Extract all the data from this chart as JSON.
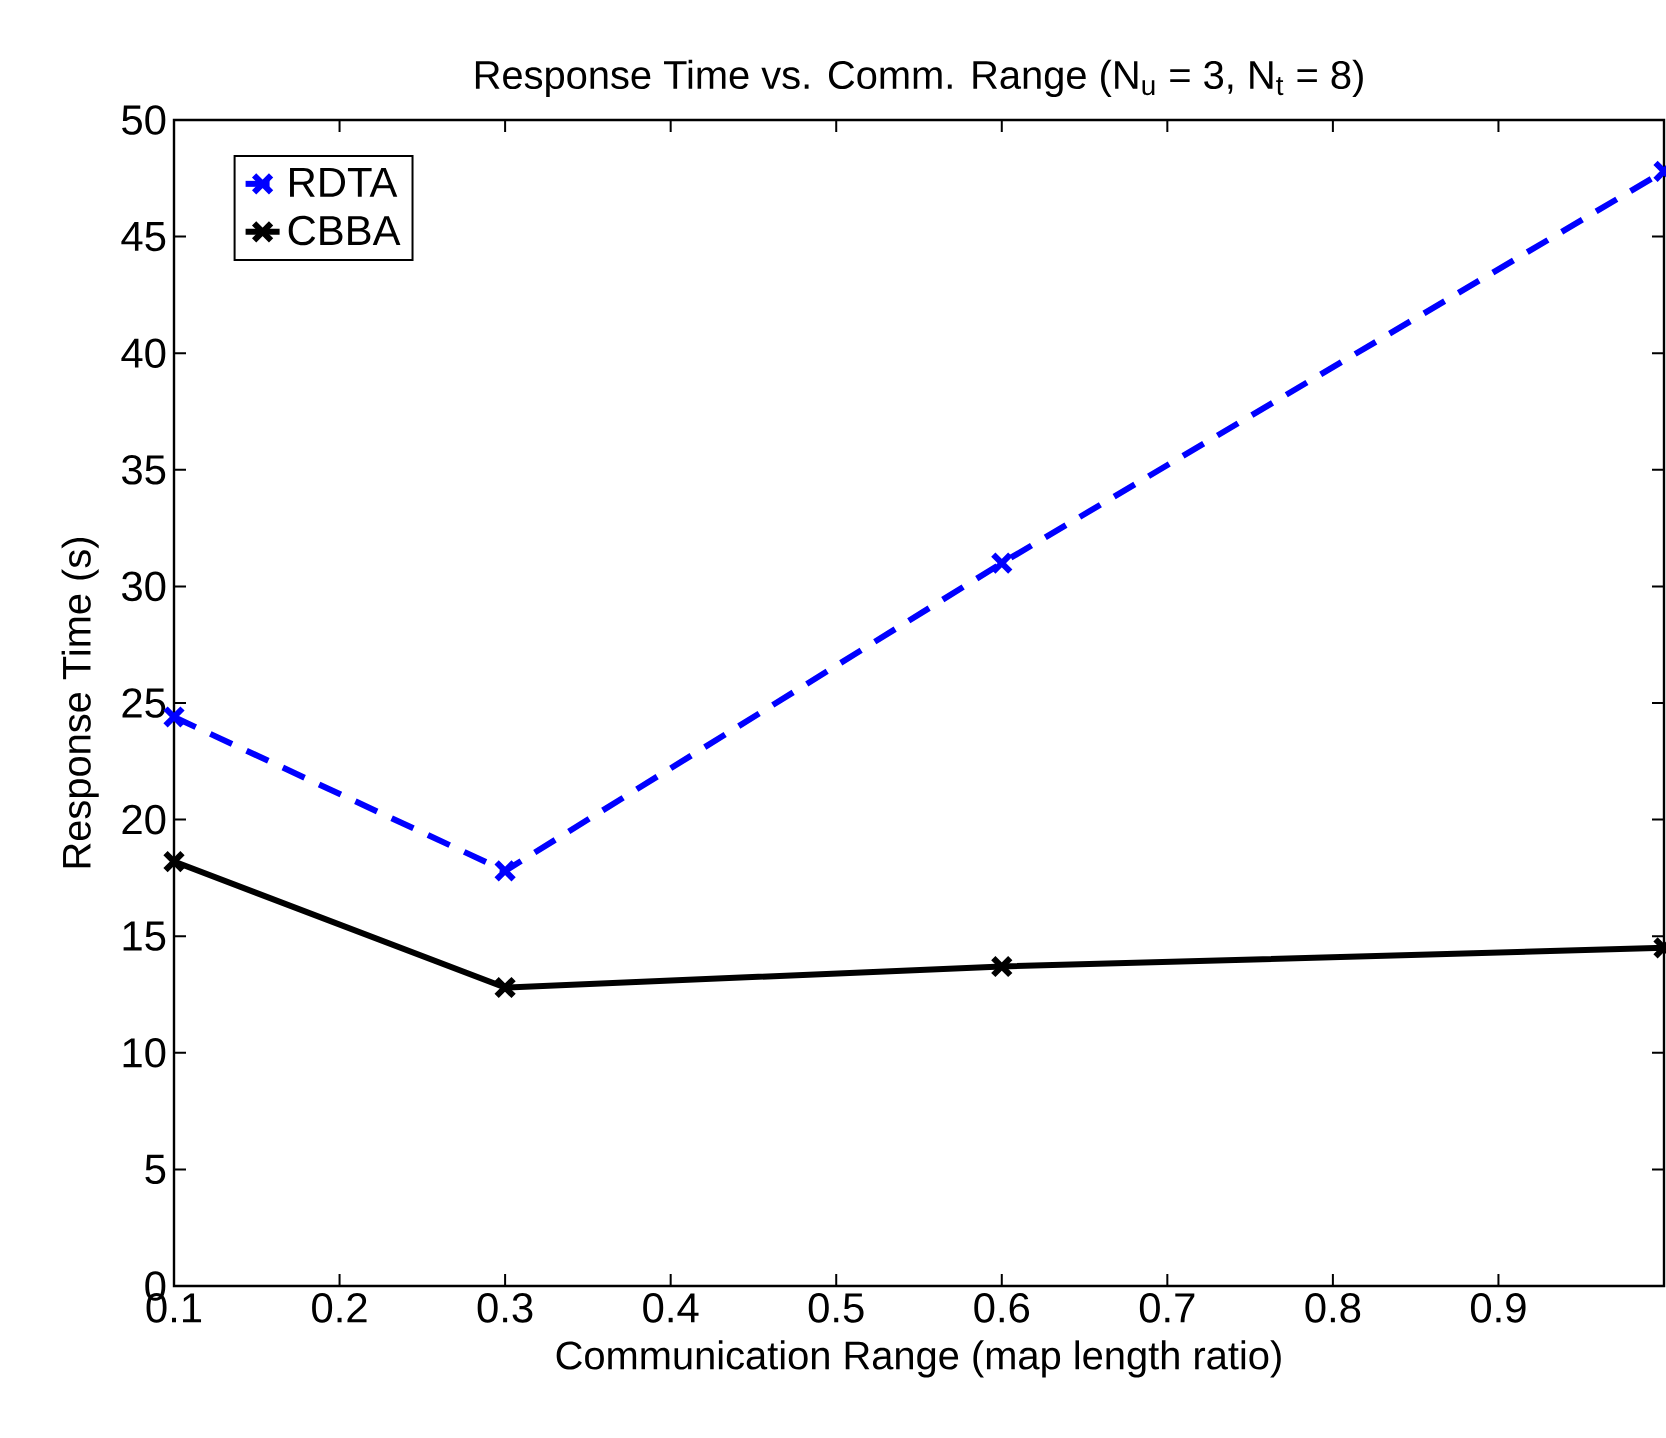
{
  "chart_data": {
    "type": "line",
    "title": "Response Time vs. Comm. Range (N$_{u}$ = 3, N$_{t}$ = 8)",
    "xlabel": "Communication Range (map length ratio)",
    "ylabel": "Response Time (s)",
    "x": [
      0.1,
      0.3,
      0.6,
      1.0
    ],
    "series": [
      {
        "name": "RDTA",
        "color": "#0000ff",
        "line_style": "dashed",
        "values": [
          24.4,
          17.8,
          31.0,
          47.8
        ]
      },
      {
        "name": "CBBA",
        "color": "#000000",
        "line_style": "solid",
        "values": [
          18.2,
          12.8,
          13.7,
          14.5
        ]
      }
    ],
    "xlim": [
      0.1,
      1.0
    ],
    "ylim": [
      0,
      50
    ],
    "xticks": [
      0.1,
      0.2,
      0.3,
      0.4,
      0.5,
      0.6,
      0.7,
      0.8,
      0.9
    ],
    "yticks": [
      0,
      5,
      10,
      15,
      20,
      25,
      30,
      35,
      40,
      45,
      50
    ],
    "legend": "top left",
    "marker": "cross",
    "grid": false
  }
}
